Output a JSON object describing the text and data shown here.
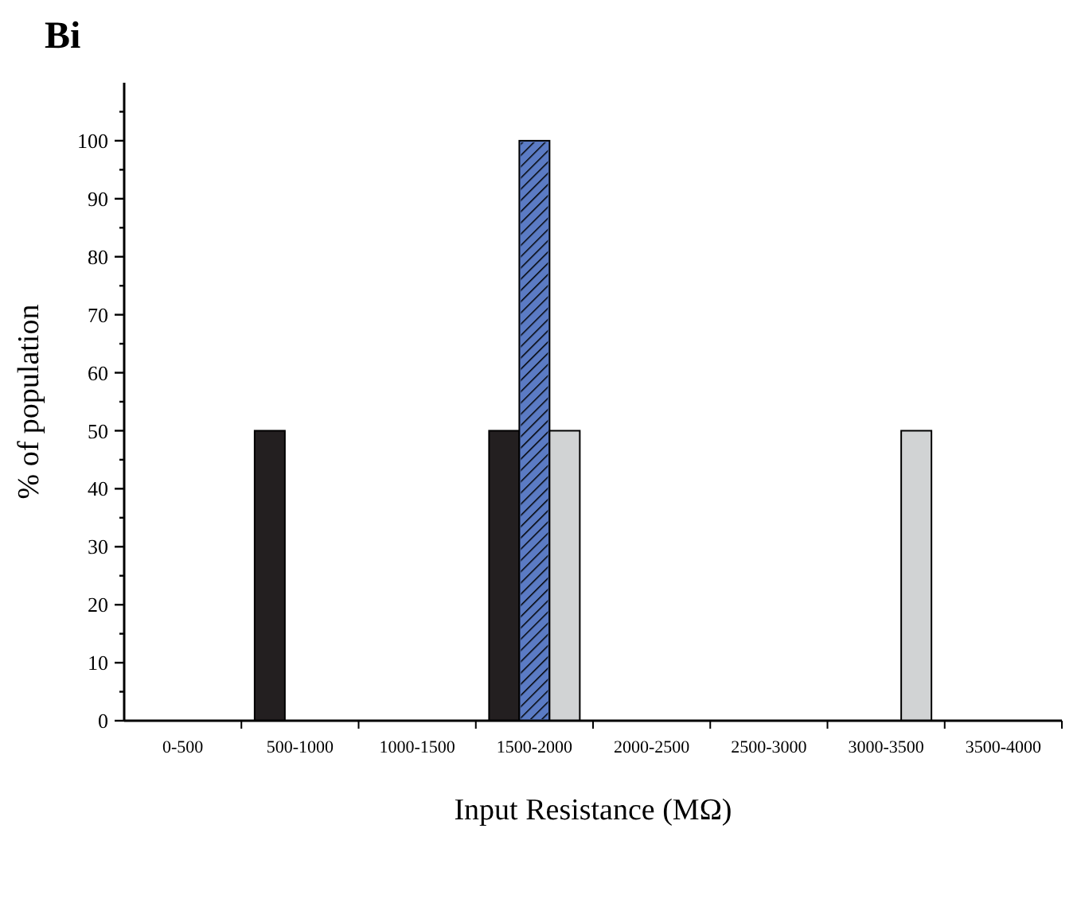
{
  "chart_data": {
    "type": "bar",
    "title": "Bi",
    "xlabel": "Input Resistance (MΩ)",
    "ylabel": "% of population",
    "categories": [
      "0-500",
      "500-1000",
      "1000-1500",
      "1500-2000",
      "2000-2500",
      "2500-3000",
      "3000-3500",
      "3500-4000"
    ],
    "series": [
      {
        "color": "#231f20",
        "values": [
          0,
          50,
          0,
          50,
          0,
          0,
          0,
          0
        ]
      },
      {
        "color": "#5b7bc4",
        "values": [
          0,
          0,
          0,
          100,
          0,
          0,
          0,
          0
        ]
      },
      {
        "color": "#d1d3d4",
        "values": [
          0,
          0,
          0,
          50,
          0,
          0,
          50,
          0
        ]
      }
    ],
    "ylim": [
      0,
      110
    ],
    "yticks": [
      0,
      {
        "value": 5,
        "label": null
      },
      10,
      {
        "value": 15,
        "label": null
      },
      20,
      {
        "value": 25,
        "label": null
      },
      30,
      {
        "value": 35,
        "label": null
      },
      40,
      {
        "value": 45,
        "label": null
      },
      50,
      {
        "value": 55,
        "label": null
      },
      60,
      {
        "value": 65,
        "label": null
      },
      70,
      {
        "value": 75,
        "label": null
      },
      80,
      {
        "value": 85,
        "label": null
      },
      90,
      {
        "value": 95,
        "label": null
      },
      100,
      {
        "value": 105,
        "label": null
      }
    ],
    "grid": false
  }
}
